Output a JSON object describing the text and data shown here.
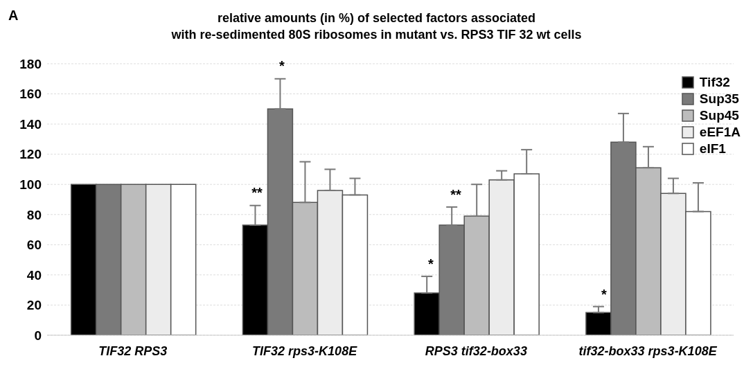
{
  "chart_data": {
    "type": "bar",
    "title": "relative amounts (in %) of selected factors associated\nwith re-sedimented 80S ribosomes in mutant vs. RPS3 TIF 32 wt cells",
    "categories": [
      "TIF32 RPS3",
      "TIF32 rps3-K108E",
      "RPS3 tif32-box33",
      "tif32-box33 rps3-K108E"
    ],
    "series": [
      {
        "name": "Tif32",
        "color": "#000000",
        "values": [
          100,
          73,
          28,
          15
        ],
        "errors": [
          null,
          [
            73,
            86
          ],
          [
            28,
            39
          ],
          [
            15,
            19
          ]
        ]
      },
      {
        "name": "Sup35",
        "color": "#7a7a7a",
        "values": [
          100,
          150,
          73,
          128
        ],
        "errors": [
          null,
          [
            150,
            170
          ],
          [
            73,
            85
          ],
          [
            128,
            147
          ]
        ]
      },
      {
        "name": "Sup45",
        "color": "#bcbcbc",
        "values": [
          100,
          88,
          79,
          111
        ],
        "errors": [
          null,
          [
            88,
            115
          ],
          [
            79,
            100
          ],
          [
            111,
            125
          ]
        ]
      },
      {
        "name": "eEF1A",
        "color": "#ececec",
        "values": [
          100,
          96,
          103,
          94
        ],
        "errors": [
          null,
          [
            96,
            110
          ],
          [
            103,
            109
          ],
          [
            94,
            104
          ]
        ]
      },
      {
        "name": "eIF1",
        "color": "#ffffff",
        "values": [
          100,
          93,
          107,
          82
        ],
        "errors": [
          null,
          [
            93,
            104
          ],
          [
            107,
            123
          ],
          [
            82,
            101
          ]
        ]
      }
    ],
    "ylim": [
      0,
      180
    ],
    "yticks": [
      0,
      20,
      40,
      60,
      80,
      100,
      120,
      140,
      160,
      180
    ],
    "grid": "y",
    "legend": "top right",
    "annotations": [
      "A",
      "**",
      "*",
      "*",
      "**",
      "*"
    ]
  }
}
